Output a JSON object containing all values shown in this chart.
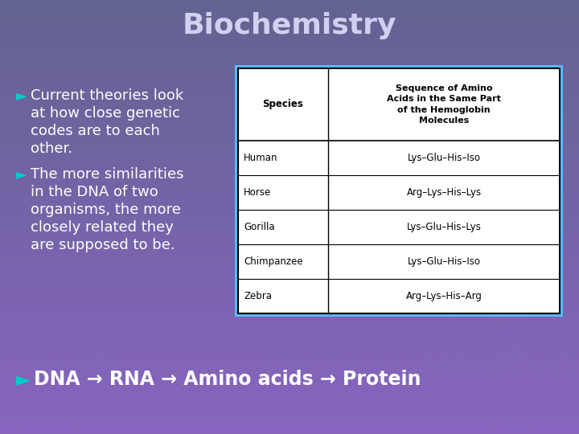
{
  "title": "Biochemistry",
  "title_color": "#d0d0f0",
  "title_fontsize": 26,
  "bg_color_top": "#636390",
  "bg_color_bottom": "#8864c0",
  "bullet_symbol": "►",
  "bullet_color": "#00cccc",
  "bullet1_lines": [
    "Current theories look",
    "at how close genetic",
    "codes are to each",
    "other."
  ],
  "bullet2_lines": [
    "The more similarities",
    "in the DNA of two",
    "organisms, the more",
    "closely related they",
    "are supposed to be."
  ],
  "bottom_line": "DNA → RNA → Amino acids → Protein",
  "text_color": "#ffffff",
  "table_border_color": "#55bbff",
  "table_header_col1": "Species",
  "table_header_col2": "Sequence of Amino\nAcids in the Same Part\nof the Hemoglobin\nMolecules",
  "table_rows": [
    [
      "Human",
      "Lys–Glu–His–Iso"
    ],
    [
      "Horse",
      "Arg–Lys–His–Lys"
    ],
    [
      "Gorilla",
      "Lys–Glu–His–Lys"
    ],
    [
      "Chimpanzee",
      "Lys–Glu–His–Iso"
    ],
    [
      "Zebra",
      "Arg–Lys–His–Arg"
    ]
  ],
  "bg_circles": [
    [
      590,
      95,
      55,
      0.13
    ],
    [
      640,
      75,
      70,
      0.09
    ],
    [
      670,
      105,
      45,
      0.11
    ],
    [
      570,
      65,
      35,
      0.09
    ],
    [
      615,
      120,
      30,
      0.07
    ],
    [
      90,
      90,
      50,
      0.11
    ],
    [
      60,
      65,
      65,
      0.07
    ],
    [
      120,
      60,
      35,
      0.09
    ],
    [
      400,
      80,
      45,
      0.08
    ],
    [
      450,
      100,
      60,
      0.07
    ],
    [
      350,
      70,
      30,
      0.06
    ]
  ]
}
